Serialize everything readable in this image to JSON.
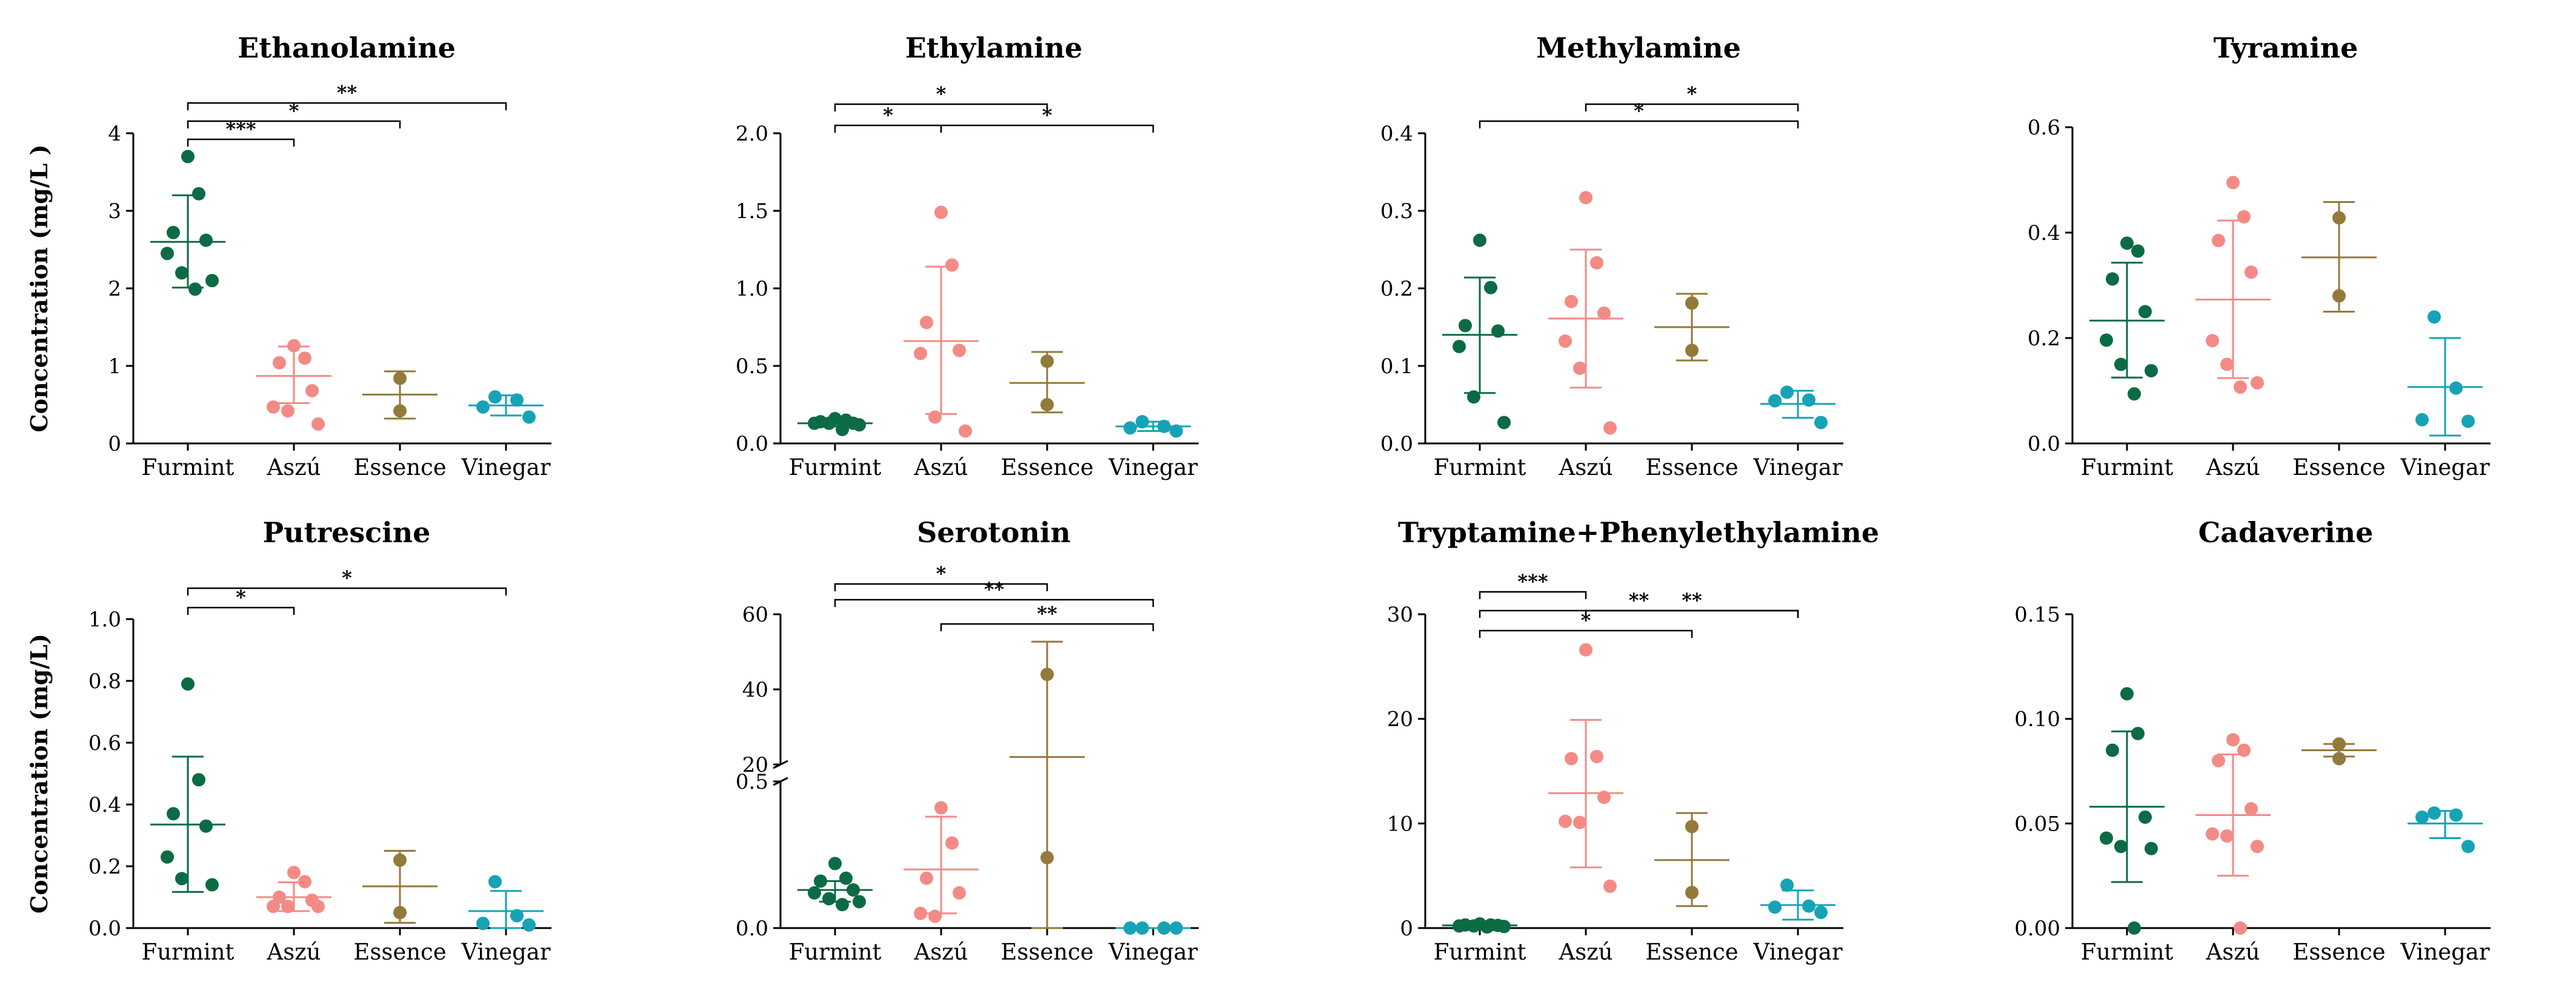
{
  "chart_data": [
    {
      "type": "scatter",
      "title": "Ethanolamine",
      "ylabel": "Concentration (mg/L )",
      "categories": [
        "Furmint",
        "Aszú",
        "Essence",
        "Vinegar"
      ],
      "ylim": [
        0,
        4
      ],
      "yticks": [
        0,
        1,
        2,
        3,
        4
      ],
      "series": [
        {
          "name": "Furmint",
          "points": [
            3.7,
            3.22,
            2.72,
            2.62,
            2.45,
            2.2,
            2.1,
            1.99
          ],
          "mean": 2.6,
          "sd": [
            2.01,
            3.2
          ]
        },
        {
          "name": "Aszú",
          "points": [
            1.26,
            1.1,
            1.04,
            0.68,
            0.47,
            0.42,
            0.25
          ],
          "mean": 0.87,
          "sd": [
            0.52,
            1.25
          ]
        },
        {
          "name": "Essence",
          "points": [
            0.84,
            0.42
          ],
          "mean": 0.63,
          "sd": [
            0.32,
            0.93
          ]
        },
        {
          "name": "Vinegar",
          "points": [
            0.6,
            0.56,
            0.47,
            0.34
          ],
          "mean": 0.49,
          "sd": [
            0.36,
            0.62
          ]
        }
      ],
      "significance": [
        {
          "from": "Furmint",
          "to": "Aszú",
          "label": "***"
        },
        {
          "from": "Furmint",
          "to": "Essence",
          "label": "*"
        },
        {
          "from": "Furmint",
          "to": "Vinegar",
          "label": "**"
        }
      ]
    },
    {
      "type": "scatter",
      "title": "Ethylamine",
      "ylabel": "",
      "categories": [
        "Furmint",
        "Aszú",
        "Essence",
        "Vinegar"
      ],
      "ylim": [
        0,
        2
      ],
      "yticks": [
        "0.0",
        "0.5",
        "1.0",
        "1.5",
        "2.0"
      ],
      "series": [
        {
          "name": "Furmint",
          "points": [
            0.16,
            0.15,
            0.14,
            0.13,
            0.13,
            0.13,
            0.12,
            0.09
          ],
          "mean": 0.13,
          "sd": [
            0.11,
            0.15
          ]
        },
        {
          "name": "Aszú",
          "points": [
            1.49,
            1.15,
            0.78,
            0.6,
            0.58,
            0.17,
            0.08
          ],
          "mean": 0.66,
          "sd": [
            0.19,
            1.14
          ]
        },
        {
          "name": "Essence",
          "points": [
            0.53,
            0.25
          ],
          "mean": 0.39,
          "sd": [
            0.2,
            0.59
          ]
        },
        {
          "name": "Vinegar",
          "points": [
            0.14,
            0.11,
            0.1,
            0.08
          ],
          "mean": 0.11,
          "sd": [
            0.08,
            0.14
          ]
        }
      ],
      "significance": [
        {
          "from": "Furmint",
          "to": "Aszú",
          "label": "*"
        },
        {
          "from": "Aszú",
          "to": "Vinegar",
          "label": "*"
        },
        {
          "from": "Furmint",
          "to": "Essence",
          "label": "*"
        }
      ]
    },
    {
      "type": "scatter",
      "title": "Methylamine",
      "ylabel": "",
      "categories": [
        "Furmint",
        "Aszú",
        "Essence",
        "Vinegar"
      ],
      "ylim": [
        0,
        0.4
      ],
      "yticks": [
        "0.0",
        "0.1",
        "0.2",
        "0.3",
        "0.4"
      ],
      "series": [
        {
          "name": "Furmint",
          "points": [
            0.262,
            0.201,
            0.152,
            0.145,
            0.125,
            0.06,
            0.027
          ],
          "mean": 0.14,
          "sd": [
            0.065,
            0.214
          ]
        },
        {
          "name": "Aszú",
          "points": [
            0.317,
            0.233,
            0.183,
            0.168,
            0.132,
            0.097,
            0.02
          ],
          "mean": 0.161,
          "sd": [
            0.072,
            0.25
          ]
        },
        {
          "name": "Essence",
          "points": [
            0.181,
            0.12
          ],
          "mean": 0.15,
          "sd": [
            0.107,
            0.193
          ]
        },
        {
          "name": "Vinegar",
          "points": [
            0.066,
            0.056,
            0.055,
            0.027
          ],
          "mean": 0.051,
          "sd": [
            0.033,
            0.068
          ]
        }
      ],
      "significance": [
        {
          "from": "Furmint",
          "to": "Vinegar",
          "label": "*"
        },
        {
          "from": "Aszú",
          "to": "Vinegar",
          "label": "*"
        }
      ]
    },
    {
      "type": "scatter",
      "title": "Tyramine",
      "ylabel": "",
      "categories": [
        "Furmint",
        "Aszú",
        "Essence",
        "Vinegar"
      ],
      "ylim": [
        0,
        0.6
      ],
      "yticks": [
        "0.0",
        "0.2",
        "0.4",
        "0.6"
      ],
      "series": [
        {
          "name": "Furmint",
          "points": [
            0.38,
            0.365,
            0.312,
            0.25,
            0.196,
            0.15,
            0.138,
            0.094
          ],
          "mean": 0.233,
          "sd": [
            0.125,
            0.343
          ]
        },
        {
          "name": "Aszú",
          "points": [
            0.495,
            0.43,
            0.385,
            0.325,
            0.195,
            0.15,
            0.115,
            0.107
          ],
          "mean": 0.273,
          "sd": [
            0.124,
            0.423
          ]
        },
        {
          "name": "Essence",
          "points": [
            0.428,
            0.28
          ],
          "mean": 0.353,
          "sd": [
            0.25,
            0.458
          ]
        },
        {
          "name": "Vinegar",
          "points": [
            0.24,
            0.105,
            0.045,
            0.042
          ],
          "mean": 0.107,
          "sd": [
            0.015,
            0.2
          ]
        }
      ],
      "significance": []
    },
    {
      "type": "scatter",
      "title": "Putrescine",
      "ylabel": "Concentration (mg/L)",
      "categories": [
        "Furmint",
        "Aszú",
        "Essence",
        "Vinegar"
      ],
      "ylim": [
        0,
        1
      ],
      "yticks": [
        "0.0",
        "0.2",
        "0.4",
        "0.6",
        "0.8",
        "1.0"
      ],
      "series": [
        {
          "name": "Furmint",
          "points": [
            0.79,
            0.48,
            0.37,
            0.33,
            0.23,
            0.16,
            0.14
          ],
          "mean": 0.335,
          "sd": [
            0.117,
            0.555
          ]
        },
        {
          "name": "Aszú",
          "points": [
            0.18,
            0.15,
            0.1,
            0.09,
            0.07,
            0.07,
            0.07
          ],
          "mean": 0.1,
          "sd": [
            0.055,
            0.148
          ]
        },
        {
          "name": "Essence",
          "points": [
            0.22,
            0.05
          ],
          "mean": 0.135,
          "sd": [
            0.017,
            0.25
          ]
        },
        {
          "name": "Vinegar",
          "points": [
            0.15,
            0.04,
            0.015,
            0.01
          ],
          "mean": 0.055,
          "sd": [
            0.0,
            0.12
          ]
        }
      ],
      "significance": [
        {
          "from": "Furmint",
          "to": "Aszú",
          "label": "*"
        },
        {
          "from": "Furmint",
          "to": "Vinegar",
          "label": "*"
        }
      ]
    },
    {
      "type": "scatter",
      "title": "Serotonin",
      "ylabel": "",
      "categories": [
        "Furmint",
        "Aszú",
        "Essence",
        "Vinegar"
      ],
      "axis_break": {
        "lower": [
          0,
          0.5
        ],
        "upper": [
          20,
          60
        ]
      },
      "yticks_lower": [
        "0.0",
        "0.5"
      ],
      "yticks_upper": [
        "20",
        "40",
        "60"
      ],
      "series": [
        {
          "name": "Furmint",
          "points": [
            0.22,
            0.17,
            0.16,
            0.13,
            0.12,
            0.1,
            0.09,
            0.08
          ],
          "mean": 0.13,
          "sd": [
            0.09,
            0.16
          ]
        },
        {
          "name": "Aszú",
          "points": [
            0.41,
            0.29,
            0.17,
            0.12,
            0.05,
            0.04
          ],
          "mean": 0.2,
          "sd": [
            0.05,
            0.38
          ]
        },
        {
          "name": "Essence",
          "points": [
            44.0,
            0.24
          ],
          "mean": 22.0,
          "sd": [
            0.0,
            52.7
          ]
        },
        {
          "name": "Vinegar",
          "points": [
            0.0,
            0.0,
            0.0,
            0.0
          ],
          "mean": 0.0,
          "sd": [
            0.0,
            0.0
          ]
        }
      ],
      "significance": [
        {
          "from": "Furmint",
          "to": "Vinegar",
          "label": "**"
        },
        {
          "from": "Furmint",
          "to": "Essence",
          "label": "*"
        },
        {
          "from": "Aszú",
          "to": "Vinegar",
          "label": "**"
        }
      ]
    },
    {
      "type": "scatter",
      "title": "Tryptamine+Phenylethylamine",
      "ylabel": "",
      "categories": [
        "Furmint",
        "Aszú",
        "Essence",
        "Vinegar"
      ],
      "ylim": [
        0,
        30
      ],
      "yticks": [
        0,
        10,
        20,
        30
      ],
      "series": [
        {
          "name": "Furmint",
          "points": [
            0.4,
            0.3,
            0.3,
            0.25,
            0.2,
            0.2,
            0.15,
            0.1
          ],
          "mean": 0.25,
          "sd": [
            0.1,
            0.4
          ]
        },
        {
          "name": "Aszú",
          "points": [
            26.6,
            16.4,
            16.2,
            12.5,
            10.2,
            10.1,
            4.0
          ],
          "mean": 12.9,
          "sd": [
            5.8,
            19.9
          ]
        },
        {
          "name": "Essence",
          "points": [
            9.7,
            3.4
          ],
          "mean": 6.5,
          "sd": [
            2.1,
            11.0
          ]
        },
        {
          "name": "Vinegar",
          "points": [
            4.1,
            2.1,
            2.0,
            1.5
          ],
          "mean": 2.2,
          "sd": [
            0.8,
            3.6
          ]
        }
      ],
      "significance": [
        {
          "from": "Furmint",
          "to": "Vinegar",
          "label": "**"
        },
        {
          "from": "Furmint",
          "to": "Aszú",
          "label": "***"
        },
        {
          "from": "Aszú",
          "to": "Vinegar",
          "label": "**"
        },
        {
          "from": "Furmint",
          "to": "Essence",
          "label": "*"
        }
      ]
    },
    {
      "type": "scatter",
      "title": "Cadaverine",
      "ylabel": "",
      "categories": [
        "Furmint",
        "Aszú",
        "Essence",
        "Vinegar"
      ],
      "ylim": [
        0,
        0.15
      ],
      "yticks": [
        "0.00",
        "0.05",
        "0.10",
        "0.15"
      ],
      "series": [
        {
          "name": "Furmint",
          "points": [
            0.112,
            0.093,
            0.085,
            0.053,
            0.043,
            0.039,
            0.038,
            0.0
          ],
          "mean": 0.058,
          "sd": [
            0.022,
            0.094
          ]
        },
        {
          "name": "Aszú",
          "points": [
            0.09,
            0.085,
            0.08,
            0.057,
            0.045,
            0.044,
            0.039,
            0.0
          ],
          "mean": 0.054,
          "sd": [
            0.025,
            0.083
          ]
        },
        {
          "name": "Essence",
          "points": [
            0.088,
            0.081
          ],
          "mean": 0.085,
          "sd": [
            0.082,
            0.088
          ]
        },
        {
          "name": "Vinegar",
          "points": [
            0.055,
            0.054,
            0.053,
            0.039
          ],
          "mean": 0.05,
          "sd": [
            0.043,
            0.056
          ]
        }
      ],
      "significance": []
    }
  ],
  "colors": {
    "Furmint": "#0b6b45",
    "Aszú": "#f48a86",
    "Essence": "#93793a",
    "Vinegar": "#16a3b6",
    "axis": "#000000"
  }
}
